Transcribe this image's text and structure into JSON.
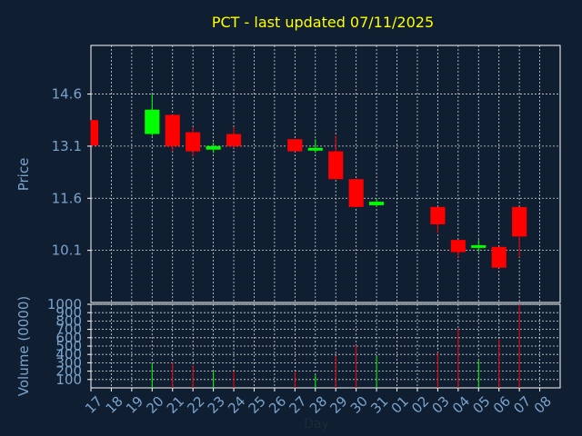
{
  "chart_data": {
    "type": "candlestick",
    "title": "PCT - last updated 07/11/2025",
    "xlabel": "Day",
    "price_panel": {
      "ylabel": "Price",
      "yticks": [
        10.1,
        11.6,
        13.1,
        14.6
      ],
      "ylim": [
        8.6,
        16.0
      ]
    },
    "volume_panel": {
      "ylabel": "Volume (0000)",
      "yticks": [
        100,
        200,
        300,
        400,
        500,
        600,
        700,
        800,
        900,
        1000
      ],
      "ylim": [
        0,
        1000
      ]
    },
    "x_tick_labels": [
      "17",
      "18",
      "19",
      "20",
      "21",
      "22",
      "23",
      "24",
      "25",
      "26",
      "27",
      "28",
      "29",
      "30",
      "31",
      "01",
      "02",
      "03",
      "04",
      "05",
      "06",
      "07",
      "08"
    ],
    "candles": [
      {
        "day": "17",
        "open": 13.85,
        "high": 13.85,
        "low": 13.12,
        "close": 13.12,
        "volume": 0
      },
      {
        "day": "20",
        "open": 13.45,
        "high": 14.6,
        "low": 13.4,
        "close": 14.15,
        "volume": 290
      },
      {
        "day": "21",
        "open": 14.0,
        "high": 14.0,
        "low": 12.95,
        "close": 13.1,
        "volume": 300
      },
      {
        "day": "22",
        "open": 13.5,
        "high": 13.65,
        "low": 12.8,
        "close": 12.95,
        "volume": 270
      },
      {
        "day": "23",
        "open": 13.0,
        "high": 13.2,
        "low": 12.9,
        "close": 13.1,
        "volume": 200
      },
      {
        "day": "24",
        "open": 13.45,
        "high": 13.65,
        "low": 13.05,
        "close": 13.1,
        "volume": 200
      },
      {
        "day": "27",
        "open": 13.3,
        "high": 13.3,
        "low": 12.95,
        "close": 12.95,
        "volume": 200
      },
      {
        "day": "28",
        "open": 13.0,
        "high": 13.3,
        "low": 12.9,
        "close": 13.05,
        "volume": 150
      },
      {
        "day": "29",
        "open": 12.95,
        "high": 13.4,
        "low": 12.15,
        "close": 12.15,
        "volume": 380
      },
      {
        "day": "30",
        "open": 12.15,
        "high": 12.15,
        "low": 11.35,
        "close": 11.35,
        "volume": 510
      },
      {
        "day": "31",
        "open": 11.4,
        "high": 11.6,
        "low": 11.35,
        "close": 11.5,
        "volume": 380
      },
      {
        "day": "03",
        "open": 11.35,
        "high": 11.35,
        "low": 10.6,
        "close": 10.85,
        "volume": 420
      },
      {
        "day": "04",
        "open": 10.4,
        "high": 10.4,
        "low": 9.9,
        "close": 10.05,
        "volume": 710
      },
      {
        "day": "05",
        "open": 10.2,
        "high": 10.4,
        "low": 10.05,
        "close": 10.25,
        "volume": 330
      },
      {
        "day": "06",
        "open": 10.2,
        "high": 10.2,
        "low": 9.6,
        "close": 9.6,
        "volume": 580
      },
      {
        "day": "07",
        "open": 11.35,
        "high": 11.35,
        "low": 9.9,
        "close": 10.5,
        "volume": 1000
      }
    ],
    "colors": {
      "up": "#00ff00",
      "down": "#ff0000",
      "background": "#0f1e30",
      "title": "#ffff00",
      "axis_text": "#7aa3cc"
    },
    "grid": true
  }
}
